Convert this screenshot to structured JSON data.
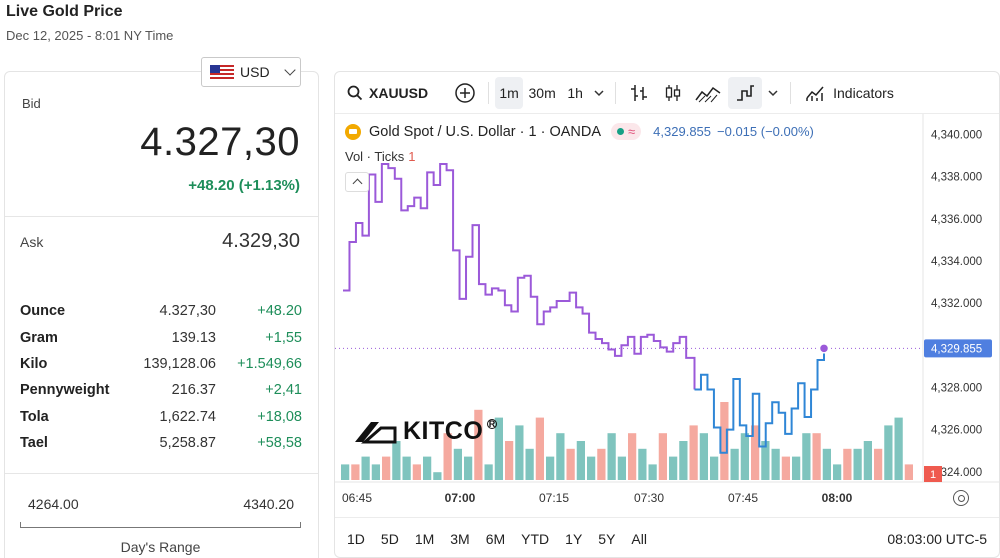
{
  "header": {
    "title": "Live Gold Price",
    "subtitle": "Dec 12, 2025 - 8:01 NY Time"
  },
  "currency": {
    "selected": "USD",
    "flag_icon": "us-flag-icon"
  },
  "quote": {
    "bid_label": "Bid",
    "bid_value": "4.327,30",
    "bid_change": "+48.20 (+1.13%)",
    "ask_label": "Ask",
    "ask_value": "4.329,30"
  },
  "units": [
    {
      "name": "Ounce",
      "price": "4.327,30",
      "change": "+48.20"
    },
    {
      "name": "Gram",
      "price": "139.13",
      "change": "+1,55"
    },
    {
      "name": "Kilo",
      "price": "139,128.06",
      "change": "+1.549,66"
    },
    {
      "name": "Pennyweight",
      "price": "216.37",
      "change": "+2,41"
    },
    {
      "name": "Tola",
      "price": "1,622.74",
      "change": "+18,08"
    },
    {
      "name": "Tael",
      "price": "5,258.87",
      "change": "+58,58"
    }
  ],
  "day_range": {
    "low": "4264.00",
    "high": "4340.20",
    "label": "Day's Range"
  },
  "toolbar": {
    "symbol": "XAUUSD",
    "intervals": [
      "1m",
      "30m",
      "1h"
    ],
    "active_interval": "1m",
    "indicators_label": "Indicators"
  },
  "legend": {
    "instrument": "Gold Spot",
    "separator": "/",
    "quote": "U.S. Dollar · 1 · OANDA",
    "approx": "≈",
    "last": "4,329.855",
    "change": "−0.015 (−0.00%)",
    "vol_label": "Vol · Ticks",
    "vol_value": "1"
  },
  "watermark": {
    "text": "KITCO",
    "reg": "R"
  },
  "periods": [
    "1D",
    "5D",
    "1M",
    "3M",
    "6M",
    "YTD",
    "1Y",
    "5Y",
    "All"
  ],
  "time_readout": "08:03:00 UTC-5",
  "colors": {
    "up": "#1e8e5a",
    "line_purple": "#9b59d9",
    "line_blue": "#2f86d6",
    "vol_up": "#78c1bb",
    "vol_down": "#f4a49a",
    "price_tag": "#4f7fe0",
    "vol_tag": "#ef5a4f"
  },
  "chart_data": {
    "type": "line",
    "step": true,
    "x_ticks": [
      "06:45",
      "07:00",
      "07:15",
      "07:30",
      "07:45",
      "08:00"
    ],
    "y_ticks": [
      "4,340.000",
      "4,338.000",
      "4,336.000",
      "4,334.000",
      "4,332.000",
      "4,330.000",
      "4,328.000",
      "4,326.000",
      "4,324.000"
    ],
    "ylim": [
      4323.8,
      4340.4
    ],
    "current_price": 4329.855,
    "current_price_label": "4,329.855",
    "volume_tag": "1",
    "series": [
      {
        "x_minutes": [
          0,
          0.7,
          1.4,
          2.1,
          2.8,
          3.5,
          4.2,
          4.9,
          5.6,
          6.3,
          7,
          7.7,
          8.4,
          9.1,
          9.8,
          10.5,
          11.2,
          11.9,
          12.6,
          13.3,
          14,
          14.7,
          15.4,
          16.1,
          16.8,
          17.5,
          18.2,
          18.9,
          19.6,
          20.3,
          21,
          21.7,
          22.4,
          23.1,
          23.8,
          24.5,
          25.2,
          25.9,
          26.6,
          27.3,
          28,
          28.7,
          29.4,
          30.1,
          30.8,
          31.5,
          32.2,
          32.9,
          33.6,
          34.3,
          35,
          35.7,
          36.4,
          37.1,
          38
        ],
        "values": [
          4332.6,
          4334.9,
          4335.8,
          4335.2,
          4338.1,
          4336.8,
          4338.6,
          4338.4,
          4337.9,
          4336.4,
          4336.6,
          4337.0,
          4336.5,
          4338.2,
          4337.6,
          4338.6,
          4338.3,
          4334.5,
          4332.2,
          4334.2,
          4335.7,
          4332.9,
          4332.4,
          4332.7,
          4332.6,
          4331.9,
          4331.6,
          4333.2,
          4333.3,
          4332.3,
          4331.0,
          4331.6,
          4331.8,
          4332.1,
          4332.1,
          4332.5,
          4331.8,
          4331.5,
          4330.6,
          4330.3,
          4330.1,
          4329.8,
          4329.5,
          4330.0,
          4330.4,
          4329.6,
          4330.4,
          4330.5,
          4330.2,
          4329.9,
          4329.7,
          4330.1,
          4330.4,
          4329.4,
          4327.9
        ],
        "name": ""
      },
      {
        "x_minutes": [
          38,
          38.7,
          39.4,
          40.1,
          40.8,
          41.5,
          42.2,
          42.9,
          43.6,
          44.3,
          45,
          45.7,
          46.4,
          47.1,
          47.8,
          48.5,
          49.2,
          49.9,
          50.6,
          51.3,
          52
        ],
        "values": [
          4327.9,
          4328.6,
          4327.9,
          4326.1,
          4324.9,
          4326.0,
          4328.4,
          4326.2,
          4325.7,
          4327.7,
          4325.2,
          4326.3,
          4327.3,
          4326.8,
          4325.8,
          4327.0,
          4328.2,
          4326.6,
          4327.9,
          4329.3,
          4329.855
        ],
        "name": ""
      }
    ],
    "volume": {
      "values_up": [
        2,
        3,
        3,
        2,
        3,
        5,
        3,
        2,
        3,
        1,
        2,
        4,
        3,
        5,
        2,
        8,
        6,
        7,
        4,
        5,
        3,
        6,
        4,
        5,
        3,
        4,
        6,
        3,
        7,
        4,
        2,
        4,
        3,
        5,
        4,
        6,
        3,
        2,
        4,
        6,
        3,
        5,
        4,
        7,
        3,
        6,
        5,
        4,
        2,
        6,
        4,
        5,
        3,
        7,
        8,
        9
      ],
      "values_down": [
        3,
        2,
        4,
        3,
        3,
        2,
        5,
        2,
        4,
        3,
        6,
        7,
        8,
        9,
        7,
        6,
        5,
        4,
        6,
        8,
        5,
        7,
        4,
        6,
        5,
        4,
        7,
        5,
        6,
        8,
        4,
        6,
        5,
        3,
        7,
        9,
        8,
        10,
        6,
        5,
        7,
        4,
        6,
        3,
        5,
        4,
        6,
        3,
        5,
        4,
        3,
        6,
        4,
        5,
        3,
        2
      ],
      "max": 10
    }
  }
}
